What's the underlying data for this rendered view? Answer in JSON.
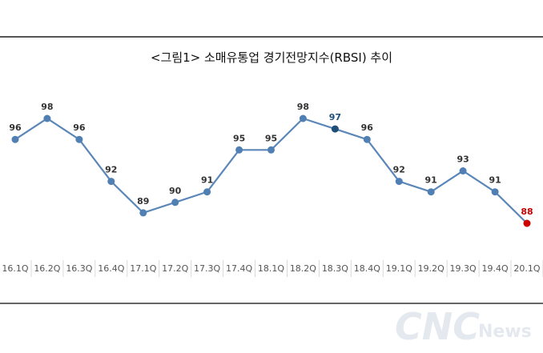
{
  "chart_data": {
    "type": "line",
    "title": "<그림1> 소매유통업 경기전망지수(RBSI) 추이",
    "categories": [
      "16.1Q",
      "16.2Q",
      "16.3Q",
      "16.4Q",
      "17.1Q",
      "17.2Q",
      "17.3Q",
      "17.4Q",
      "18.1Q",
      "18.2Q",
      "18.3Q",
      "18.4Q",
      "19.1Q",
      "19.2Q",
      "19.3Q",
      "19.4Q",
      "20.1Q"
    ],
    "series": [
      {
        "values": [
          96,
          98,
          96,
          92,
          89,
          90,
          91,
          95,
          95,
          98,
          97,
          96,
          92,
          91,
          93,
          91,
          88
        ]
      }
    ],
    "highlight": {
      "18.3Q": "#1f4e79",
      "20.1Q": "#cc0000"
    },
    "ylim": [
      86,
      101
    ],
    "grid": false,
    "legend": "none",
    "line_color": "#5b87b8",
    "marker_color": "#4f7fb3"
  },
  "watermark": {
    "main": "CNC",
    "sub": "News"
  }
}
